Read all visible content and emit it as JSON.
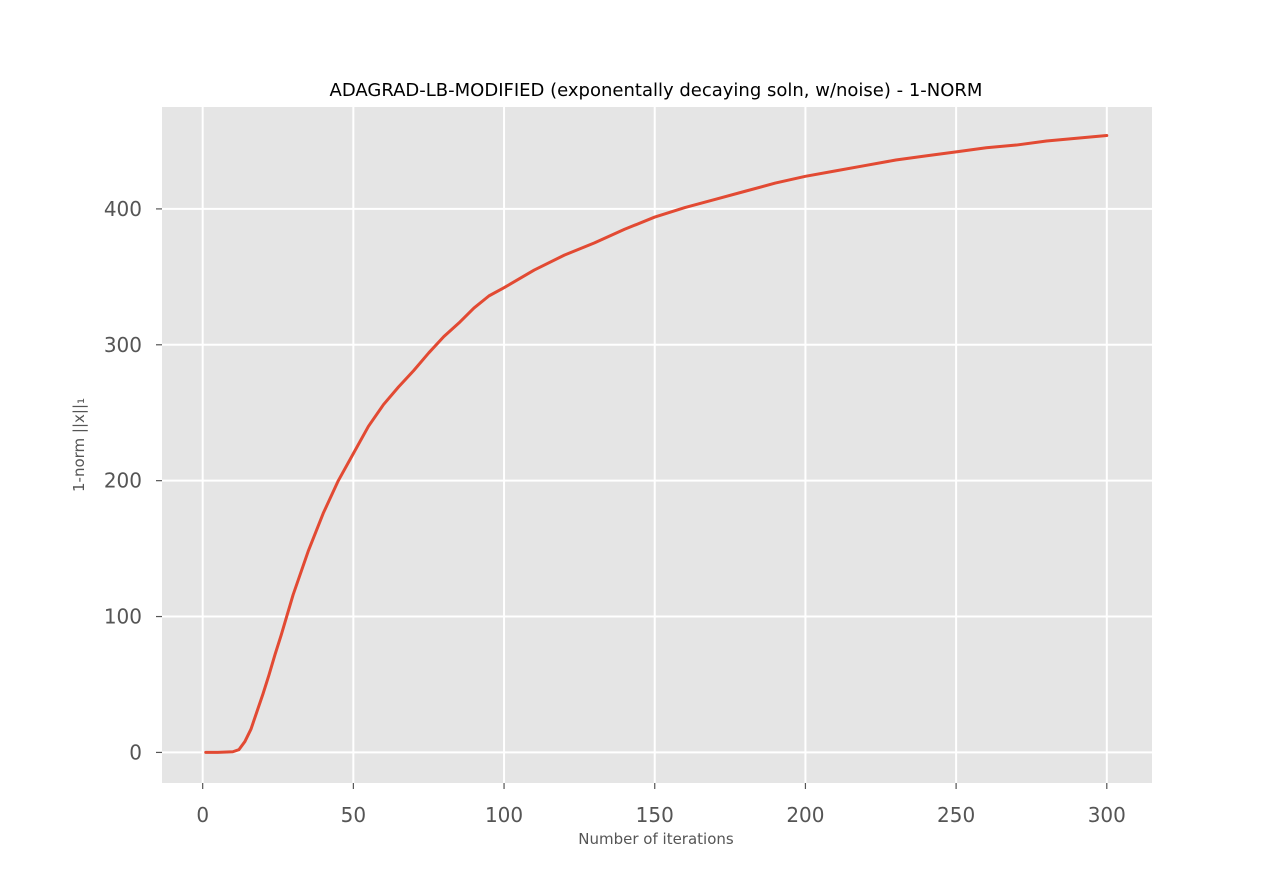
{
  "chart_data": {
    "type": "line",
    "title": "ADAGRAD-LB-MODIFIED (exponentally decaying soln, w/noise) - 1-NORM",
    "xlabel": "Number of iterations",
    "ylabel": "1-norm ||x||₁",
    "xlim": [
      -13.5,
      315
    ],
    "ylim": [
      -22.5,
      475
    ],
    "xticks": [
      0,
      50,
      100,
      150,
      200,
      250,
      300
    ],
    "yticks": [
      0,
      100,
      200,
      300,
      400
    ],
    "grid": true,
    "style": {
      "background": "#e5e5e5",
      "grid_color": "#ffffff",
      "line_color": "#e24a33",
      "tick_color": "#555555"
    },
    "series": [
      {
        "x": [
          1,
          5,
          10,
          12,
          14,
          16,
          18,
          20,
          22,
          24,
          26,
          28,
          30,
          35,
          40,
          45,
          50,
          55,
          60,
          65,
          70,
          75,
          80,
          85,
          90,
          95,
          100,
          110,
          120,
          130,
          140,
          150,
          160,
          170,
          180,
          190,
          200,
          210,
          220,
          230,
          240,
          250,
          260,
          270,
          280,
          290,
          300
        ],
        "y": [
          0,
          0,
          0.5,
          2,
          8,
          17,
          30,
          43,
          57,
          72,
          86,
          101,
          116,
          148,
          176,
          200,
          220,
          240,
          256,
          269,
          281,
          294,
          306,
          316,
          327,
          336,
          342,
          355,
          366,
          375,
          385,
          394,
          401,
          407,
          413,
          419,
          424,
          428,
          432,
          436,
          439,
          442,
          445,
          447,
          450,
          452,
          454
        ]
      }
    ]
  }
}
